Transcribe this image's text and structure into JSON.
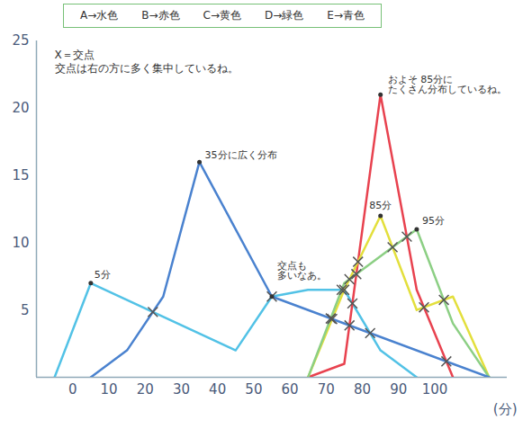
{
  "chart_data": {
    "type": "line",
    "legend": "top",
    "x_label": "(分)",
    "xlim": [
      -10,
      120
    ],
    "xticks": [
      0,
      10,
      20,
      30,
      40,
      50,
      60,
      70,
      80,
      90,
      100
    ],
    "ylim": [
      0,
      25
    ],
    "yticks": [
      5,
      10,
      15,
      20,
      25
    ],
    "series": [
      {
        "name": "A→水色",
        "color": "#52c2e6",
        "x": [
          -5,
          5,
          45,
          55,
          65,
          75,
          85,
          95
        ],
        "values": [
          0,
          7,
          2,
          6,
          6.5,
          6.5,
          2,
          0
        ]
      },
      {
        "name": "B→赤色",
        "color": "#e8424f",
        "x": [
          65,
          75,
          85,
          95,
          105
        ],
        "values": [
          0,
          1,
          21,
          6.5,
          0
        ]
      },
      {
        "name": "C→黄色",
        "color": "#e3df3c",
        "x": [
          65,
          75,
          85,
          95,
          105,
          115
        ],
        "values": [
          0,
          6.5,
          12,
          5,
          6,
          0
        ]
      },
      {
        "name": "D→緑色",
        "color": "#8ccf84",
        "x": [
          65,
          75,
          95,
          105,
          115
        ],
        "values": [
          0,
          7,
          11,
          4,
          0
        ]
      },
      {
        "name": "E→青色",
        "color": "#4a82cf",
        "x": [
          5,
          15,
          25,
          35,
          55,
          115
        ],
        "values": [
          0,
          2,
          6,
          16,
          6,
          0
        ]
      }
    ],
    "annotations": [
      {
        "text": "5分",
        "x": 5,
        "y": 7
      },
      {
        "text": "35分に広く分布",
        "x": 35,
        "y": 16
      },
      {
        "text": "85分",
        "x": 85,
        "y": 12
      },
      {
        "text": "95分",
        "x": 95,
        "y": 11
      },
      {
        "text": "およそ 85分に\nたくさん分布しているね。",
        "x": 85,
        "y": 21
      },
      {
        "text": "交点も\n多いなあ。",
        "x": 55,
        "y": 6
      }
    ],
    "notes": [
      "X＝交点",
      "交点は右の方に多く集中しているね。"
    ]
  }
}
